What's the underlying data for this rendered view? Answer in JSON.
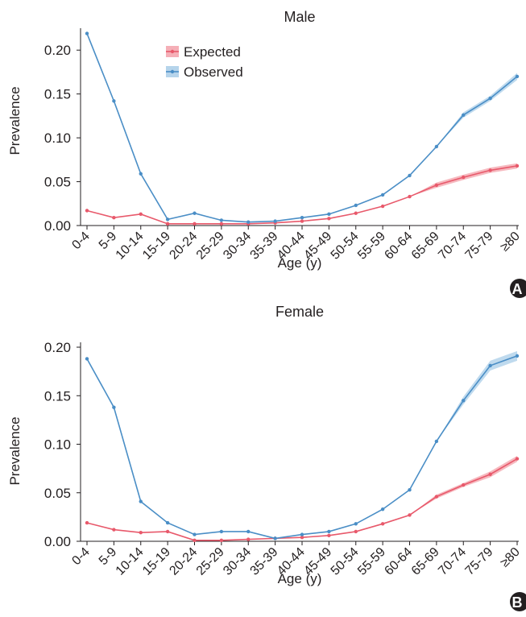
{
  "chart_data": [
    {
      "type": "line",
      "panel_label": "A",
      "title": "Male",
      "xlabel": "Age (y)",
      "ylabel": "Prevalence",
      "categories": [
        "0-4",
        "5-9",
        "10-14",
        "15-19",
        "20-24",
        "25-29",
        "30-34",
        "35-39",
        "40-44",
        "45-49",
        "50-54",
        "55-59",
        "60-64",
        "65-69",
        "70-74",
        "75-79",
        "≥80"
      ],
      "yticks": [
        "0.00",
        "0.05",
        "0.10",
        "0.15",
        "0.20"
      ],
      "ylim": [
        0,
        0.225
      ],
      "legend_position": "top-left",
      "series": [
        {
          "name": "Expected",
          "color": "#e8596b",
          "band_color": "#f3a1aa",
          "values": [
            0.017,
            0.009,
            0.013,
            0.002,
            0.002,
            0.002,
            0.002,
            0.003,
            0.005,
            0.008,
            0.014,
            0.022,
            0.033,
            0.046,
            0.055,
            0.063,
            0.068
          ],
          "band": [
            0,
            0,
            0,
            0,
            0,
            0,
            0,
            0,
            0,
            0,
            0,
            0,
            0,
            0.003,
            0.003,
            0.003,
            0.003
          ]
        },
        {
          "name": "Observed",
          "color": "#4a8ec6",
          "band_color": "#a9cde8",
          "values": [
            0.219,
            0.142,
            0.059,
            0.007,
            0.014,
            0.006,
            0.004,
            0.005,
            0.009,
            0.013,
            0.023,
            0.035,
            0.057,
            0.09,
            0.126,
            0.145,
            0.17
          ],
          "band": [
            0,
            0,
            0,
            0,
            0,
            0,
            0,
            0,
            0,
            0,
            0,
            0,
            0,
            0,
            0.003,
            0.003,
            0.004
          ]
        }
      ]
    },
    {
      "type": "line",
      "panel_label": "B",
      "title": "Female",
      "xlabel": "Age (y)",
      "ylabel": "Prevalence",
      "categories": [
        "0-4",
        "5-9",
        "10-14",
        "15-19",
        "20-24",
        "25-29",
        "30-34",
        "35-39",
        "40-44",
        "45-49",
        "50-54",
        "55-59",
        "60-64",
        "65-69",
        "70-74",
        "75-79",
        "≥80"
      ],
      "yticks": [
        "0.00",
        "0.05",
        "0.10",
        "0.15",
        "0.20"
      ],
      "ylim": [
        0,
        0.205
      ],
      "series": [
        {
          "name": "Expected",
          "color": "#e8596b",
          "band_color": "#f3a1aa",
          "values": [
            0.019,
            0.012,
            0.009,
            0.01,
            0.001,
            0.001,
            0.002,
            0.003,
            0.004,
            0.006,
            0.01,
            0.018,
            0.027,
            0.046,
            0.058,
            0.069,
            0.085
          ],
          "band": [
            0,
            0,
            0,
            0,
            0,
            0,
            0,
            0,
            0,
            0,
            0,
            0,
            0,
            0.002,
            0.002,
            0.003,
            0.003
          ]
        },
        {
          "name": "Observed",
          "color": "#4a8ec6",
          "band_color": "#a9cde8",
          "values": [
            0.188,
            0.138,
            0.041,
            0.019,
            0.007,
            0.01,
            0.01,
            0.003,
            0.007,
            0.01,
            0.018,
            0.033,
            0.053,
            0.103,
            0.145,
            0.181,
            0.191
          ],
          "band": [
            0,
            0,
            0,
            0,
            0,
            0,
            0,
            0,
            0,
            0,
            0,
            0,
            0,
            0,
            0.004,
            0.005,
            0.005
          ]
        }
      ]
    }
  ]
}
